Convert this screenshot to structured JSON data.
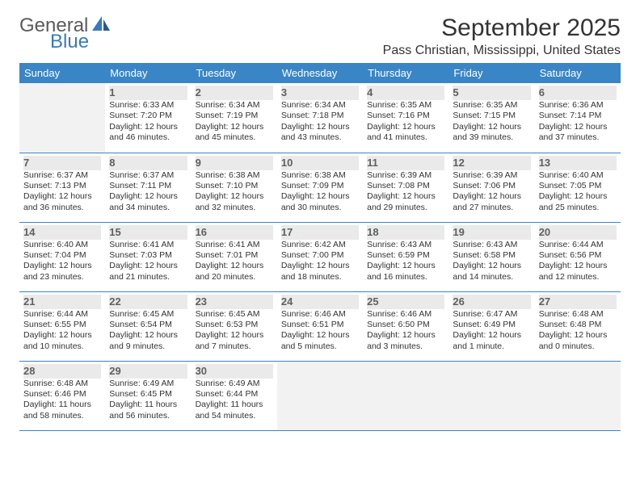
{
  "logo": {
    "part1": "General",
    "part2": "Blue"
  },
  "title": "September 2025",
  "location": "Pass Christian, Mississippi, United States",
  "dayHeaders": [
    "Sunday",
    "Monday",
    "Tuesday",
    "Wednesday",
    "Thursday",
    "Friday",
    "Saturday"
  ],
  "colors": {
    "header_bg": "#3a85c6",
    "header_text": "#ffffff",
    "daynum_bg": "#eaeaea",
    "daynum_text": "#606060",
    "empty_bg": "#f2f2f2",
    "body_text": "#333333",
    "rule": "#3a85c6",
    "logo_gray": "#5a5a5a",
    "logo_blue": "#3a7ab8"
  },
  "layout": {
    "columns": 7,
    "rows": 5,
    "cell_fontsize": 10.5,
    "header_fontsize": 13,
    "title_fontsize": 30,
    "location_fontsize": 16
  },
  "weeks": [
    [
      {
        "empty": true
      },
      {
        "day": "1",
        "sunrise": "6:33 AM",
        "sunset": "7:20 PM",
        "daylight": "12 hours and 46 minutes."
      },
      {
        "day": "2",
        "sunrise": "6:34 AM",
        "sunset": "7:19 PM",
        "daylight": "12 hours and 45 minutes."
      },
      {
        "day": "3",
        "sunrise": "6:34 AM",
        "sunset": "7:18 PM",
        "daylight": "12 hours and 43 minutes."
      },
      {
        "day": "4",
        "sunrise": "6:35 AM",
        "sunset": "7:16 PM",
        "daylight": "12 hours and 41 minutes."
      },
      {
        "day": "5",
        "sunrise": "6:35 AM",
        "sunset": "7:15 PM",
        "daylight": "12 hours and 39 minutes."
      },
      {
        "day": "6",
        "sunrise": "6:36 AM",
        "sunset": "7:14 PM",
        "daylight": "12 hours and 37 minutes."
      }
    ],
    [
      {
        "day": "7",
        "sunrise": "6:37 AM",
        "sunset": "7:13 PM",
        "daylight": "12 hours and 36 minutes."
      },
      {
        "day": "8",
        "sunrise": "6:37 AM",
        "sunset": "7:11 PM",
        "daylight": "12 hours and 34 minutes."
      },
      {
        "day": "9",
        "sunrise": "6:38 AM",
        "sunset": "7:10 PM",
        "daylight": "12 hours and 32 minutes."
      },
      {
        "day": "10",
        "sunrise": "6:38 AM",
        "sunset": "7:09 PM",
        "daylight": "12 hours and 30 minutes."
      },
      {
        "day": "11",
        "sunrise": "6:39 AM",
        "sunset": "7:08 PM",
        "daylight": "12 hours and 29 minutes."
      },
      {
        "day": "12",
        "sunrise": "6:39 AM",
        "sunset": "7:06 PM",
        "daylight": "12 hours and 27 minutes."
      },
      {
        "day": "13",
        "sunrise": "6:40 AM",
        "sunset": "7:05 PM",
        "daylight": "12 hours and 25 minutes."
      }
    ],
    [
      {
        "day": "14",
        "sunrise": "6:40 AM",
        "sunset": "7:04 PM",
        "daylight": "12 hours and 23 minutes."
      },
      {
        "day": "15",
        "sunrise": "6:41 AM",
        "sunset": "7:03 PM",
        "daylight": "12 hours and 21 minutes."
      },
      {
        "day": "16",
        "sunrise": "6:41 AM",
        "sunset": "7:01 PM",
        "daylight": "12 hours and 20 minutes."
      },
      {
        "day": "17",
        "sunrise": "6:42 AM",
        "sunset": "7:00 PM",
        "daylight": "12 hours and 18 minutes."
      },
      {
        "day": "18",
        "sunrise": "6:43 AM",
        "sunset": "6:59 PM",
        "daylight": "12 hours and 16 minutes."
      },
      {
        "day": "19",
        "sunrise": "6:43 AM",
        "sunset": "6:58 PM",
        "daylight": "12 hours and 14 minutes."
      },
      {
        "day": "20",
        "sunrise": "6:44 AM",
        "sunset": "6:56 PM",
        "daylight": "12 hours and 12 minutes."
      }
    ],
    [
      {
        "day": "21",
        "sunrise": "6:44 AM",
        "sunset": "6:55 PM",
        "daylight": "12 hours and 10 minutes."
      },
      {
        "day": "22",
        "sunrise": "6:45 AM",
        "sunset": "6:54 PM",
        "daylight": "12 hours and 9 minutes."
      },
      {
        "day": "23",
        "sunrise": "6:45 AM",
        "sunset": "6:53 PM",
        "daylight": "12 hours and 7 minutes."
      },
      {
        "day": "24",
        "sunrise": "6:46 AM",
        "sunset": "6:51 PM",
        "daylight": "12 hours and 5 minutes."
      },
      {
        "day": "25",
        "sunrise": "6:46 AM",
        "sunset": "6:50 PM",
        "daylight": "12 hours and 3 minutes."
      },
      {
        "day": "26",
        "sunrise": "6:47 AM",
        "sunset": "6:49 PM",
        "daylight": "12 hours and 1 minute."
      },
      {
        "day": "27",
        "sunrise": "6:48 AM",
        "sunset": "6:48 PM",
        "daylight": "12 hours and 0 minutes."
      }
    ],
    [
      {
        "day": "28",
        "sunrise": "6:48 AM",
        "sunset": "6:46 PM",
        "daylight": "11 hours and 58 minutes."
      },
      {
        "day": "29",
        "sunrise": "6:49 AM",
        "sunset": "6:45 PM",
        "daylight": "11 hours and 56 minutes."
      },
      {
        "day": "30",
        "sunrise": "6:49 AM",
        "sunset": "6:44 PM",
        "daylight": "11 hours and 54 minutes."
      },
      {
        "empty": true
      },
      {
        "empty": true
      },
      {
        "empty": true
      },
      {
        "empty": true
      }
    ]
  ],
  "labels": {
    "sunrise": "Sunrise:",
    "sunset": "Sunset:",
    "daylight": "Daylight:"
  }
}
